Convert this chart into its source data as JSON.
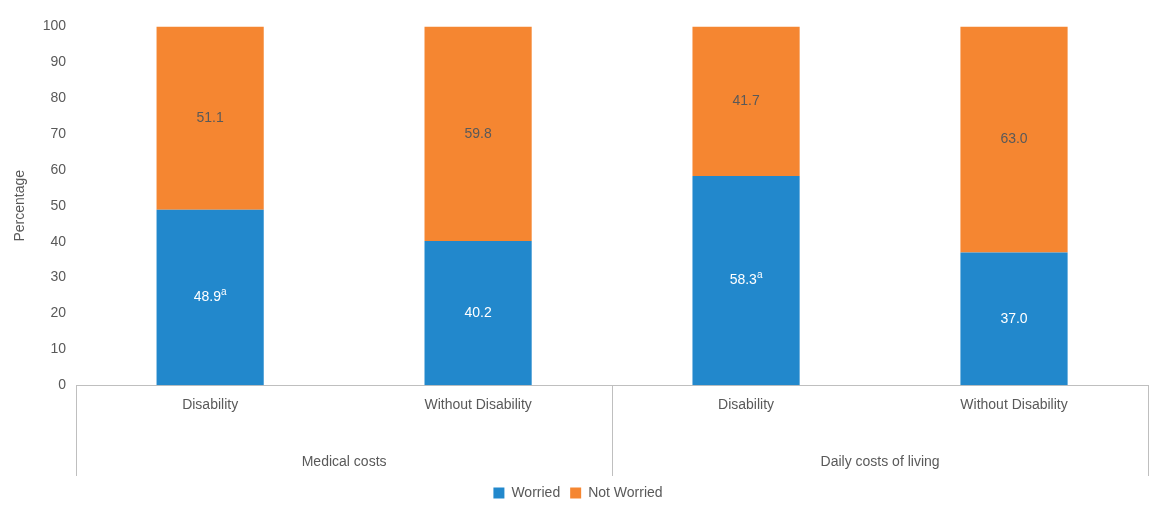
{
  "chart_data": {
    "type": "bar",
    "stacked": true,
    "ylabel": "Percentage",
    "categories": [
      "Disability",
      "Without Disability",
      "Disability",
      "Without Disability"
    ],
    "series": [
      {
        "name": "Worried",
        "color": "#2288cc",
        "values": [
          48.9,
          40.2,
          58.3,
          37.0
        ],
        "value_labels": [
          "48.9$^{a}$",
          "40.2",
          "58.3$^{a}$",
          "37.0"
        ]
      },
      {
        "name": "Not Worried",
        "color": "#f58631",
        "values": [
          51.1,
          59.8,
          41.7,
          63.0
        ],
        "value_labels": [
          "51.1",
          "59.8",
          "41.7",
          "63.0"
        ]
      }
    ],
    "ylim": [
      0,
      100
    ],
    "yticks": [
      0,
      10,
      20,
      30,
      40,
      50,
      60,
      70,
      80,
      90,
      100
    ],
    "grid": false,
    "legend": "bottom",
    "annotations": [
      "Medical costs",
      "Daily costs of living"
    ]
  }
}
